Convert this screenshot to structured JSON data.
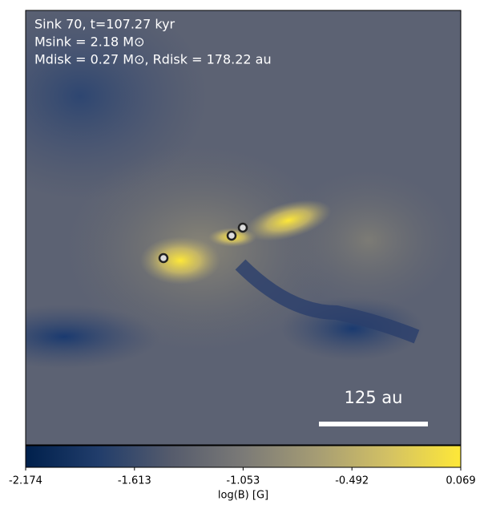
{
  "chart_data": {
    "type": "image",
    "annotations": [
      "Sink 70, t=107.27 kyr",
      "Msink = 2.18 M⊙",
      "Mdisk = 0.27 M⊙, Rdisk = 178.22 au"
    ],
    "scale_bar_label": "125 au",
    "colorbar": {
      "label": "log(B) [G]",
      "lim": [
        -2.174,
        0.069
      ],
      "ticks": [
        -2.174,
        -1.613,
        -1.053,
        -0.492,
        0.069
      ],
      "colors": [
        "#00204c",
        "#213d6b",
        "#555b6c",
        "#7b7a77",
        "#a59c74",
        "#d3c164",
        "#fee838"
      ]
    }
  }
}
